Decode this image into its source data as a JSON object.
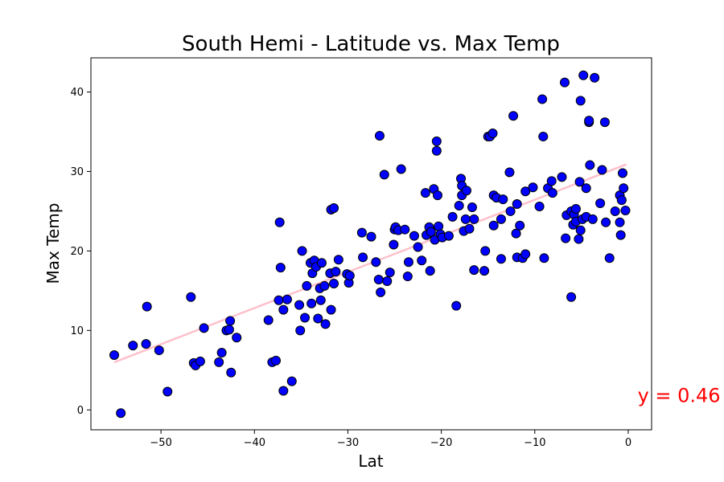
{
  "chart_data": {
    "type": "scatter",
    "title": "South Hemi - Latitude vs. Max Temp",
    "xlabel": "Lat",
    "ylabel": "Max Temp",
    "xlim": [
      -57.5,
      2.5
    ],
    "ylim": [
      -2.5,
      44.3
    ],
    "xticks": [
      -50,
      -40,
      -30,
      -20,
      -10,
      0
    ],
    "yticks": [
      0,
      10,
      20,
      30,
      40
    ],
    "xtick_labels": [
      "−50",
      "−40",
      "−30",
      "−20",
      "−10",
      "0"
    ],
    "ytick_labels": [
      "0",
      "10",
      "20",
      "30",
      "40"
    ],
    "grid": false,
    "marker_color": "#0000ff",
    "marker_edge_color": "#000000",
    "regression": {
      "color": "#ffc0cb",
      "x": [
        -55,
        -0.2
      ],
      "y": [
        6.0,
        30.9
      ]
    },
    "annotation": {
      "text": "y = 0.46",
      "color": "#ff0000",
      "x": 1.0,
      "y": 1.0
    },
    "points": [
      [
        -55,
        6.9
      ],
      [
        -54.3,
        -0.4
      ],
      [
        -53,
        8.1
      ],
      [
        -51.6,
        8.3
      ],
      [
        -51.5,
        13.0
      ],
      [
        -50.2,
        7.5
      ],
      [
        -49.3,
        2.3
      ],
      [
        -46.8,
        14.2
      ],
      [
        -46.5,
        5.9
      ],
      [
        -46.3,
        5.6
      ],
      [
        -45.8,
        6.1
      ],
      [
        -45.4,
        10.3
      ],
      [
        -43.8,
        6.0
      ],
      [
        -43.5,
        7.2
      ],
      [
        -43.0,
        10.0
      ],
      [
        -42.7,
        10.1
      ],
      [
        -42.6,
        11.2
      ],
      [
        -42.5,
        4.7
      ],
      [
        -41.9,
        9.1
      ],
      [
        -38.5,
        11.3
      ],
      [
        -38.1,
        6.0
      ],
      [
        -37.7,
        6.2
      ],
      [
        -37.4,
        13.8
      ],
      [
        -37.3,
        23.6
      ],
      [
        -37.2,
        17.9
      ],
      [
        -36.9,
        12.6
      ],
      [
        -36.9,
        2.4
      ],
      [
        -36.5,
        13.9
      ],
      [
        -36.0,
        3.6
      ],
      [
        -35.2,
        13.2
      ],
      [
        -35.1,
        10.0
      ],
      [
        -34.9,
        20.0
      ],
      [
        -34.6,
        11.6
      ],
      [
        -34.4,
        15.6
      ],
      [
        -34.0,
        18.5
      ],
      [
        -33.9,
        13.4
      ],
      [
        -33.8,
        17.2
      ],
      [
        -33.6,
        18.8
      ],
      [
        -33.4,
        18.0
      ],
      [
        -33.2,
        11.5
      ],
      [
        -33.0,
        15.3
      ],
      [
        -32.9,
        13.8
      ],
      [
        -32.8,
        18.5
      ],
      [
        -32.5,
        15.6
      ],
      [
        -32.4,
        10.8
      ],
      [
        -31.9,
        17.2
      ],
      [
        -31.8,
        12.6
      ],
      [
        -31.8,
        25.2
      ],
      [
        -31.5,
        25.4
      ],
      [
        -31.5,
        15.9
      ],
      [
        -31.3,
        17.4
      ],
      [
        -31.0,
        18.9
      ],
      [
        -30.1,
        17.1
      ],
      [
        -29.9,
        16.0
      ],
      [
        -29.8,
        16.9
      ],
      [
        -28.5,
        22.3
      ],
      [
        -28.4,
        19.2
      ],
      [
        -27.5,
        21.8
      ],
      [
        -27.0,
        18.6
      ],
      [
        -26.7,
        16.4
      ],
      [
        -26.6,
        34.5
      ],
      [
        -26.5,
        14.8
      ],
      [
        -26.1,
        29.6
      ],
      [
        -25.8,
        16.2
      ],
      [
        -25.5,
        17.3
      ],
      [
        -25.1,
        20.8
      ],
      [
        -25.0,
        22.7
      ],
      [
        -24.9,
        23.0
      ],
      [
        -24.6,
        22.6
      ],
      [
        -24.3,
        30.3
      ],
      [
        -23.9,
        22.7
      ],
      [
        -23.6,
        16.8
      ],
      [
        -23.5,
        18.6
      ],
      [
        -22.9,
        21.9
      ],
      [
        -22.5,
        20.5
      ],
      [
        -22.1,
        18.8
      ],
      [
        -21.7,
        27.3
      ],
      [
        -21.6,
        22.0
      ],
      [
        -21.3,
        23.0
      ],
      [
        -21.2,
        17.5
      ],
      [
        -21.1,
        22.4
      ],
      [
        -20.8,
        27.8
      ],
      [
        -20.7,
        21.4
      ],
      [
        -20.5,
        33.8
      ],
      [
        -20.5,
        32.6
      ],
      [
        -20.4,
        27.0
      ],
      [
        -20.3,
        23.1
      ],
      [
        -20.1,
        22.1
      ],
      [
        -19.9,
        21.7
      ],
      [
        -19.2,
        21.9
      ],
      [
        -18.8,
        24.3
      ],
      [
        -18.4,
        13.1
      ],
      [
        -18.1,
        25.7
      ],
      [
        -17.9,
        29.1
      ],
      [
        -17.8,
        28.2
      ],
      [
        -17.8,
        27.0
      ],
      [
        -17.6,
        22.5
      ],
      [
        -17.4,
        24.0
      ],
      [
        -17.3,
        27.6
      ],
      [
        -17.0,
        22.8
      ],
      [
        -16.7,
        25.5
      ],
      [
        -16.5,
        17.6
      ],
      [
        -16.5,
        24.0
      ],
      [
        -15.4,
        17.5
      ],
      [
        -15.3,
        20.0
      ],
      [
        -15.0,
        34.4
      ],
      [
        -14.8,
        34.4
      ],
      [
        -14.5,
        34.8
      ],
      [
        -14.4,
        23.2
      ],
      [
        -14.4,
        27.0
      ],
      [
        -14.1,
        26.7
      ],
      [
        -13.6,
        24.0
      ],
      [
        -13.6,
        19.0
      ],
      [
        -13.4,
        26.5
      ],
      [
        -12.7,
        29.9
      ],
      [
        -12.6,
        25.0
      ],
      [
        -12.3,
        37.0
      ],
      [
        -12.0,
        22.2
      ],
      [
        -11.9,
        19.2
      ],
      [
        -11.9,
        25.9
      ],
      [
        -11.6,
        23.2
      ],
      [
        -11.3,
        19.1
      ],
      [
        -11.0,
        19.6
      ],
      [
        -11.0,
        27.5
      ],
      [
        -10.2,
        28.0
      ],
      [
        -9.5,
        25.6
      ],
      [
        -9.2,
        39.1
      ],
      [
        -9.1,
        34.4
      ],
      [
        -9.0,
        19.1
      ],
      [
        -8.6,
        27.9
      ],
      [
        -8.2,
        28.8
      ],
      [
        -8.1,
        27.3
      ],
      [
        -7.1,
        29.3
      ],
      [
        -6.8,
        41.2
      ],
      [
        -6.7,
        21.6
      ],
      [
        -6.6,
        24.5
      ],
      [
        -6.1,
        14.2
      ],
      [
        -6.1,
        25.0
      ],
      [
        -5.9,
        23.3
      ],
      [
        -5.8,
        24.6
      ],
      [
        -5.6,
        25.3
      ],
      [
        -5.6,
        23.7
      ],
      [
        -5.3,
        21.5
      ],
      [
        -5.2,
        28.7
      ],
      [
        -5.1,
        38.9
      ],
      [
        -5.1,
        22.6
      ],
      [
        -4.9,
        24.0
      ],
      [
        -4.8,
        42.1
      ],
      [
        -4.5,
        24.3
      ],
      [
        -4.5,
        27.9
      ],
      [
        -4.2,
        36.2
      ],
      [
        -4.2,
        36.4
      ],
      [
        -4.1,
        30.8
      ],
      [
        -3.8,
        24.0
      ],
      [
        -3.6,
        41.8
      ],
      [
        -3.0,
        26.0
      ],
      [
        -2.8,
        30.2
      ],
      [
        -2.5,
        36.2
      ],
      [
        -2.4,
        23.6
      ],
      [
        -2.0,
        19.1
      ],
      [
        -1.4,
        25.0
      ],
      [
        -0.9,
        23.6
      ],
      [
        -0.9,
        27.0
      ],
      [
        -0.8,
        22.0
      ],
      [
        -0.7,
        26.4
      ],
      [
        -0.6,
        29.8
      ],
      [
        -0.5,
        27.9
      ],
      [
        -0.3,
        25.1
      ]
    ]
  }
}
